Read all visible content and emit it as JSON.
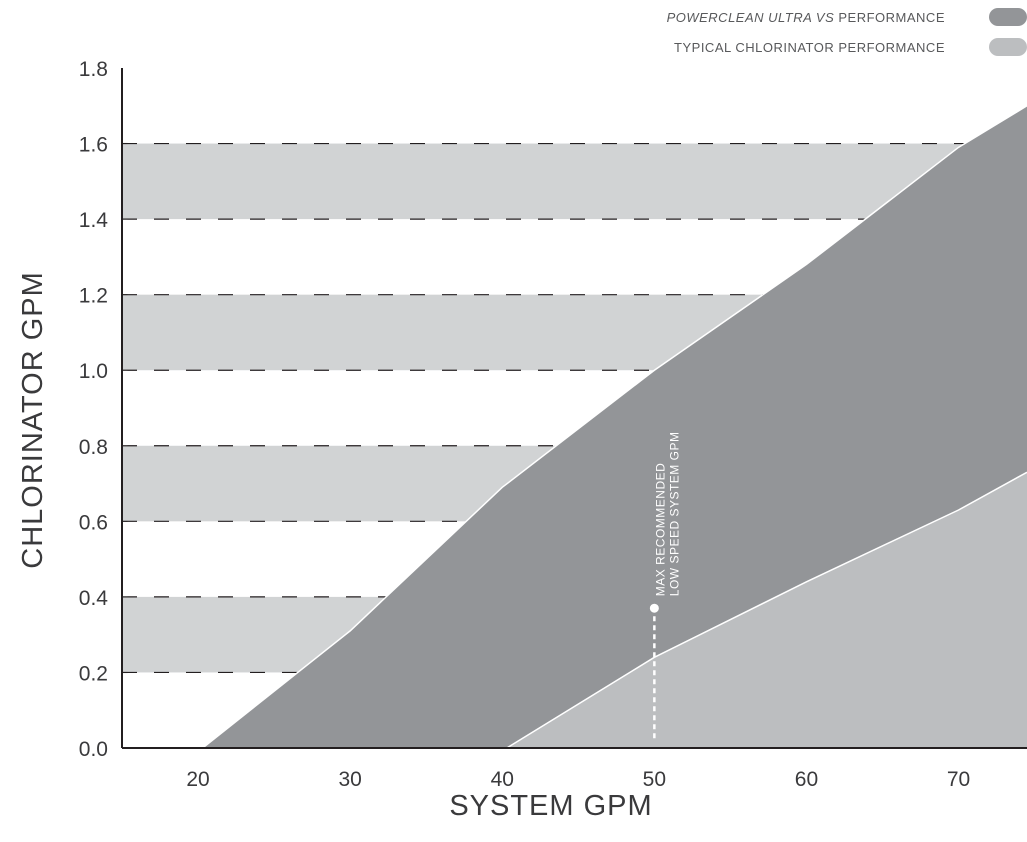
{
  "legend": {
    "items": [
      {
        "label_italic": "POWERCLEAN ULTRA VS",
        "label_rest": " PERFORMANCE",
        "color": "#939598"
      },
      {
        "label_italic": "",
        "label_rest": "TYPICAL CHLORINATOR PERFORMANCE",
        "color": "#bcbec0"
      }
    ]
  },
  "chart_data": {
    "type": "area",
    "title": "",
    "xlabel": "SYSTEM GPM",
    "ylabel": "CHLORINATOR GPM",
    "xlim": [
      15,
      74.5
    ],
    "ylim": [
      0,
      1.8
    ],
    "x_ticks": [
      "20",
      "30",
      "40",
      "50",
      "60",
      "70"
    ],
    "y_ticks": [
      "0.0",
      "0.2",
      "0.4",
      "0.6",
      "0.8",
      "1.0",
      "1.2",
      "1.4",
      "1.6",
      "1.8"
    ],
    "grid": "dashed horizontal lines with alternating light-gray bands",
    "series": [
      {
        "name": "POWERCLEAN ULTRA VS PERFORMANCE",
        "color": "#939598",
        "points": [
          [
            20.3,
            0.0
          ],
          [
            30,
            0.31
          ],
          [
            40,
            0.69
          ],
          [
            50,
            1.0
          ],
          [
            60,
            1.28
          ],
          [
            70,
            1.59
          ],
          [
            74.5,
            1.7
          ]
        ]
      },
      {
        "name": "TYPICAL CHLORINATOR PERFORMANCE",
        "color": "#bcbec0",
        "points": [
          [
            40.3,
            0.0
          ],
          [
            50,
            0.24
          ],
          [
            60,
            0.44
          ],
          [
            70,
            0.63
          ],
          [
            74.5,
            0.73
          ]
        ]
      }
    ],
    "annotations": [
      {
        "lines": [
          "MAX RECOMMENDED",
          "LOW SPEED SYSTEM GPM"
        ],
        "x": 50,
        "y": 0.37
      }
    ]
  }
}
